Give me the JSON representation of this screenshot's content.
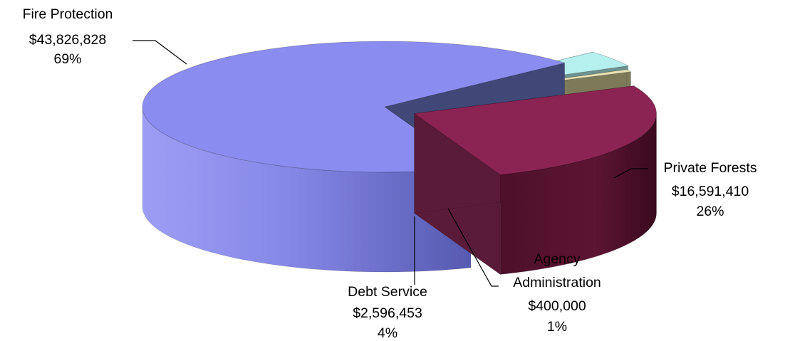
{
  "chart_data": {
    "type": "pie",
    "style": "3d-exploded",
    "title": "",
    "legend": "none",
    "slices": [
      {
        "name": "Fire Protection",
        "amount": "$43,826,828",
        "percent": "69%",
        "value": 43826828,
        "color": "#8a8cf0"
      },
      {
        "name": "Private Forests",
        "amount": "$16,591,410",
        "percent": "26%",
        "value": 16591410,
        "color": "#8b2452"
      },
      {
        "name": "Agency Administration",
        "amount": "$400,000",
        "percent": "1%",
        "value": 400000,
        "color": "#e6e2b4"
      },
      {
        "name": "Debt Service",
        "amount": "$2,596,453",
        "percent": "4%",
        "value": 2596453,
        "color": "#b5f0ee"
      }
    ]
  },
  "labels": {
    "fire": {
      "line1": "Fire Protection",
      "line2": "$43,826,828",
      "line3": "69%"
    },
    "private": {
      "line1": "Private Forests",
      "line2": "$16,591,410",
      "line3": "26%"
    },
    "agency": {
      "line1": "Agency",
      "line2": "Administration",
      "line3": "$400,000",
      "line4": "1%"
    },
    "debt": {
      "line1": "Debt Service",
      "line2": "$2,596,453",
      "line3": "4%"
    }
  }
}
